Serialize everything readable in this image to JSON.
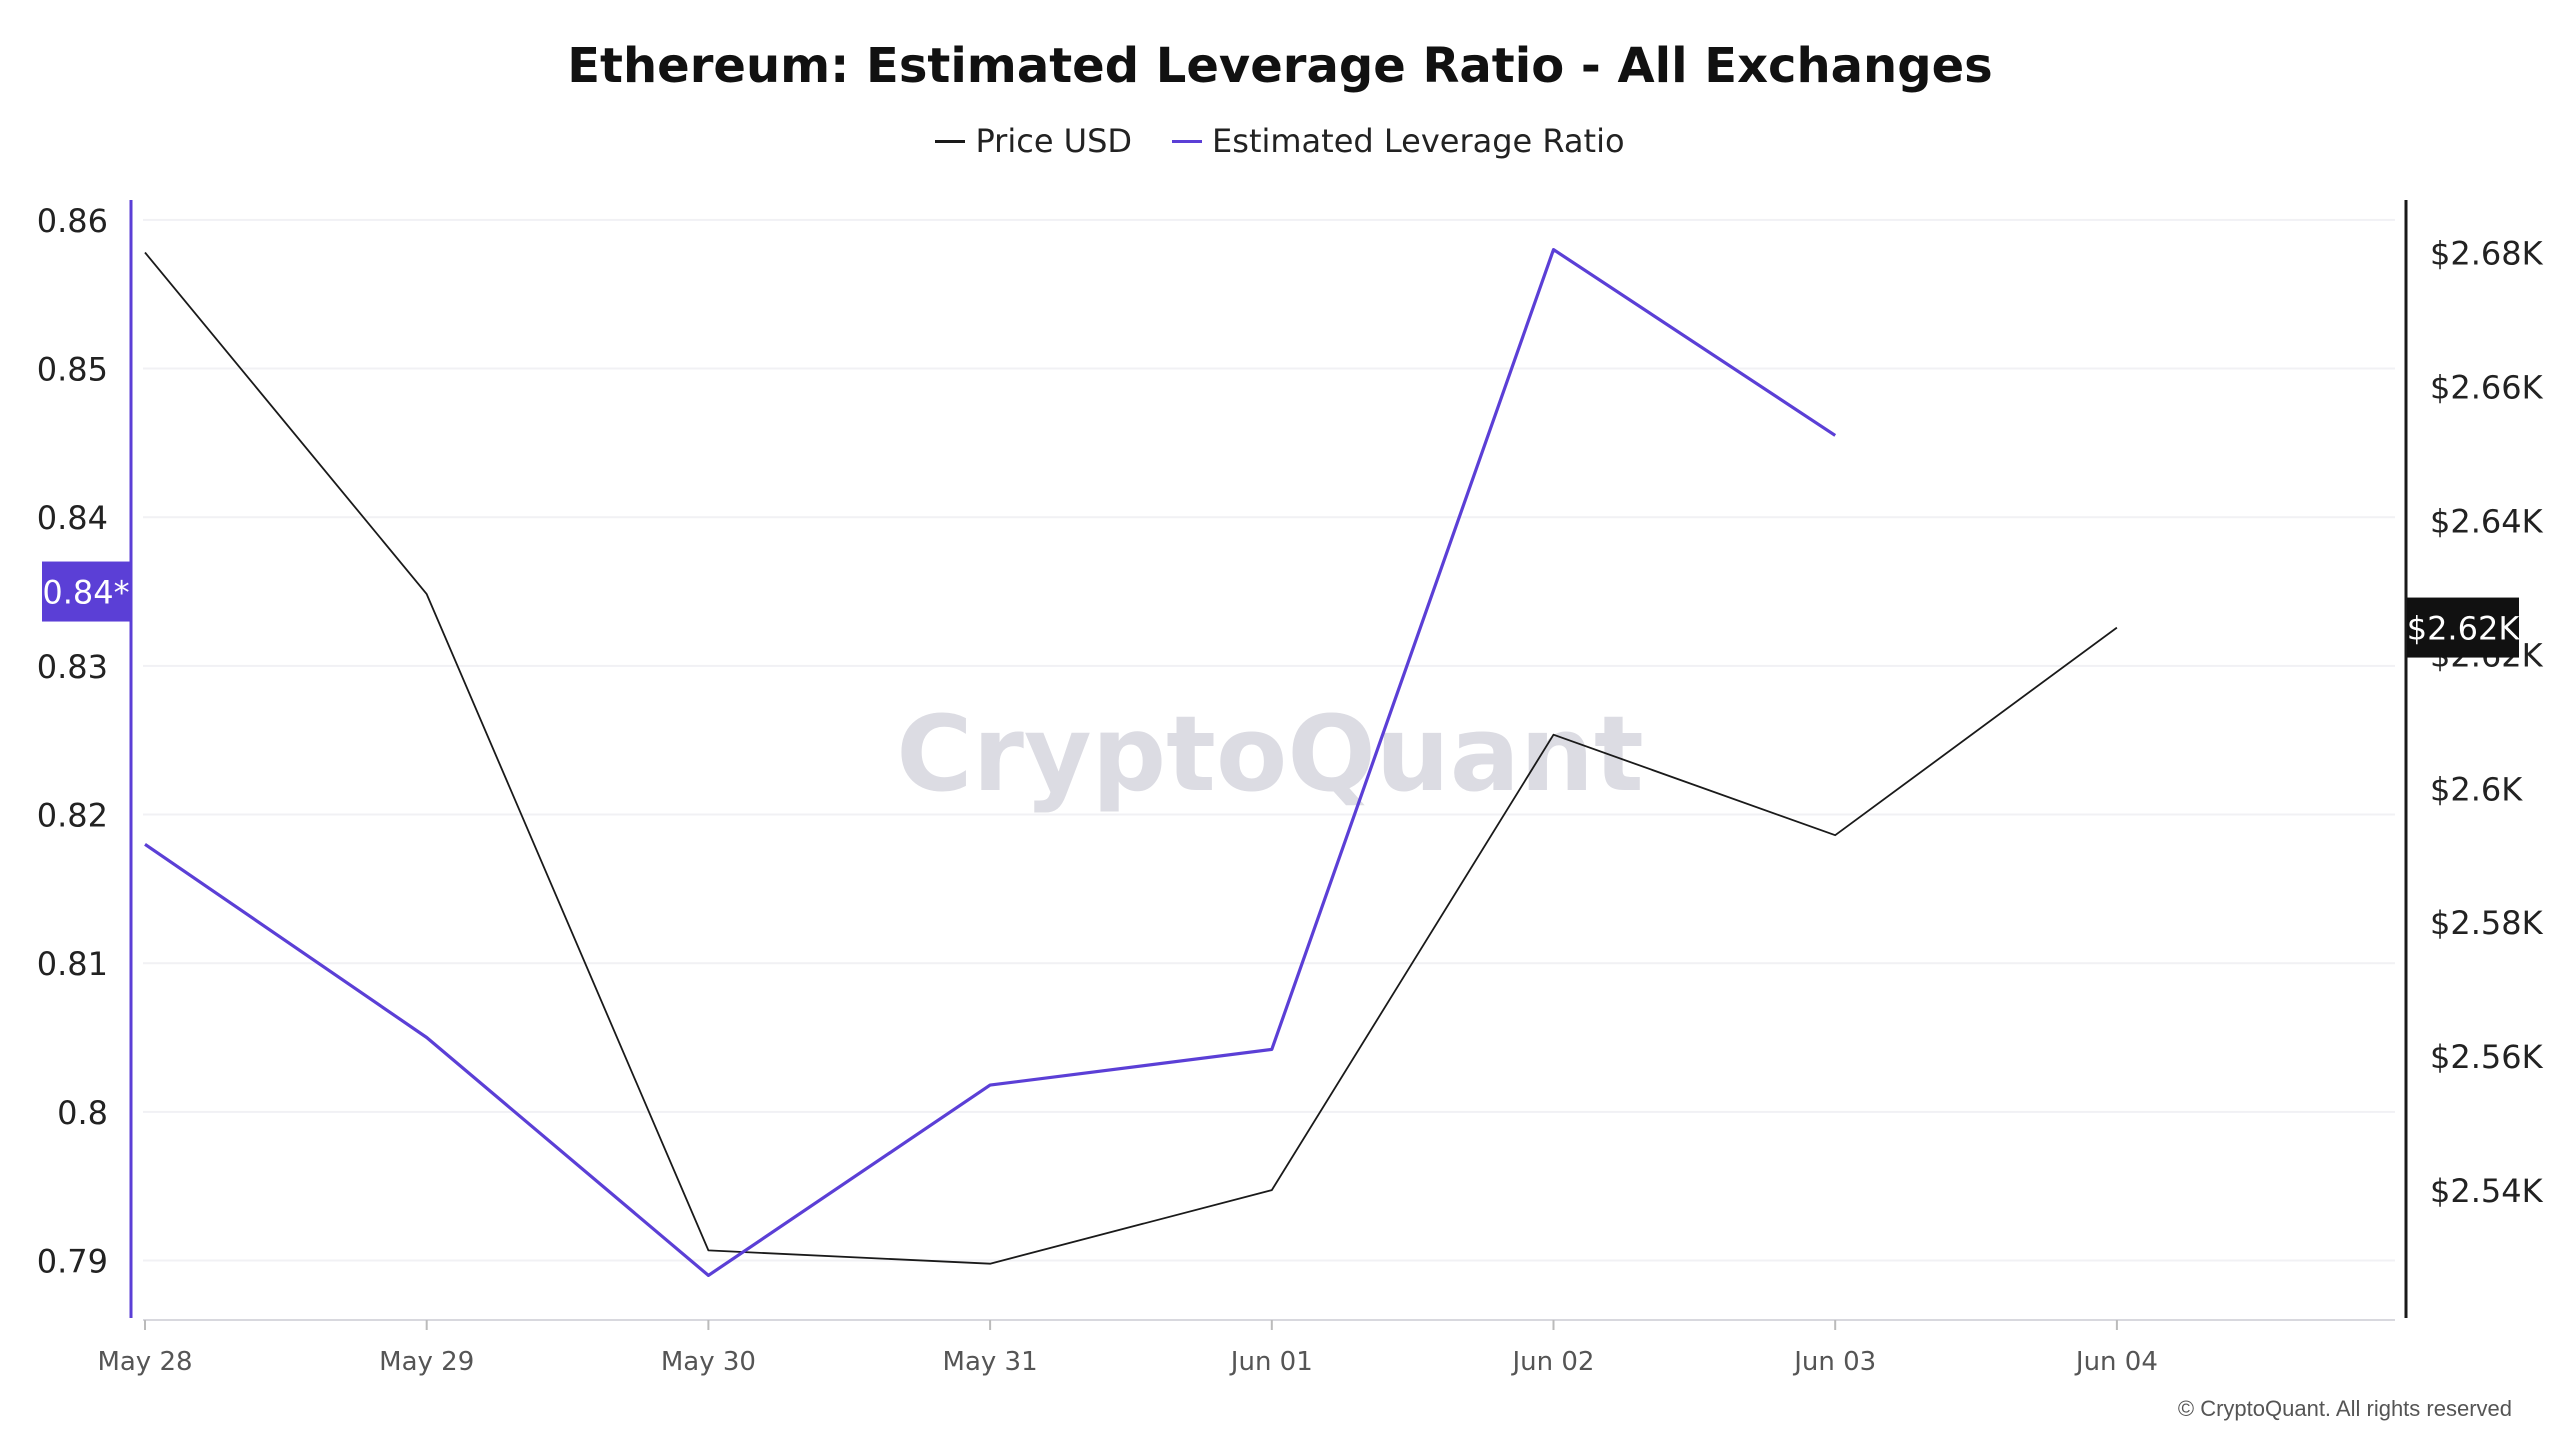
{
  "chart_data": {
    "type": "line",
    "title": "Ethereum: Estimated Leverage Ratio - All Exchanges",
    "watermark": "CryptoQuant",
    "copyright": "© CryptoQuant. All rights reserved",
    "categories": [
      "May 28",
      "May 29",
      "May 30",
      "May 31",
      "Jun 01",
      "Jun 02",
      "Jun 03",
      "Jun 04"
    ],
    "left_axis": {
      "ticks": [
        "0.86",
        "0.85",
        "0.84",
        "0.83",
        "0.82",
        "0.81",
        "0.8",
        "0.79"
      ],
      "tick_values": [
        0.86,
        0.85,
        0.84,
        0.83,
        0.82,
        0.81,
        0.8,
        0.79
      ],
      "range": [
        0.786,
        0.861
      ],
      "current_label": "0.84*",
      "current_value": 0.835
    },
    "right_axis": {
      "ticks": [
        "$2.68K",
        "$2.66K",
        "$2.64K",
        "$2.62K",
        "$2.6K",
        "$2.58K",
        "$2.56K",
        "$2.54K"
      ],
      "tick_values": [
        2680,
        2660,
        2640,
        2620,
        2600,
        2580,
        2560,
        2540
      ],
      "range": [
        2520.6,
        2687.1
      ],
      "current_label": "$2.62K",
      "current_value": 2624
    },
    "series": [
      {
        "name": "Price USD",
        "axis": "right",
        "color": "#1a1a1a",
        "values": [
          2680,
          2629,
          2531,
          2529,
          2540,
          2608,
          2593,
          2624
        ]
      },
      {
        "name": "Estimated Leverage Ratio",
        "axis": "left",
        "color": "#5b3fd6",
        "values": [
          0.818,
          0.805,
          0.789,
          0.8018,
          0.8042,
          0.858,
          0.8455,
          null
        ]
      }
    ]
  }
}
